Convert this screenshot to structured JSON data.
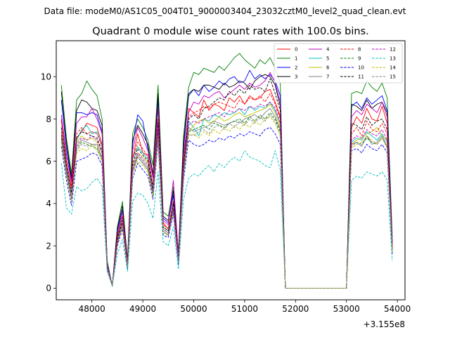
{
  "figure": {
    "suptitle": "Data file: modeM0/AS1C05_004T01_9000003404_23032cztM0_level2_quad_clean.evt",
    "title": "Quadrant 0 module wise count rates with 100.0s bins."
  },
  "chart_data": {
    "type": "line",
    "title": "Quadrant 0 module wise count rates with 100.0s bins.",
    "xlabel": "",
    "ylabel": "",
    "x_offset_label": "+3.155e8",
    "xlim": [
      47300,
      54150
    ],
    "ylim": [
      -0.55,
      11.7
    ],
    "xticks": [
      48000,
      49000,
      50000,
      51000,
      52000,
      53000,
      54000
    ],
    "xtick_labels": [
      "48000",
      "49000",
      "50000",
      "51000",
      "52000",
      "53000",
      "54000"
    ],
    "yticks": [
      0,
      2,
      4,
      6,
      8,
      10
    ],
    "ytick_labels": [
      "0",
      "2",
      "4",
      "6",
      "8",
      "10"
    ],
    "grid": false,
    "legend_position": "top-right",
    "x": [
      47400,
      47500,
      47600,
      47700,
      47800,
      47900,
      48000,
      48100,
      48200,
      48300,
      48400,
      48500,
      48600,
      48700,
      48800,
      48900,
      49000,
      49100,
      49200,
      49300,
      49400,
      49500,
      49600,
      49700,
      49800,
      49900,
      50000,
      50100,
      50200,
      50300,
      50400,
      50500,
      50600,
      50700,
      50800,
      50900,
      51000,
      51100,
      51200,
      51300,
      51400,
      51500,
      51600,
      51700,
      51800,
      51900,
      52000,
      52100,
      52200,
      52300,
      52400,
      52500,
      52600,
      52700,
      52800,
      52900,
      53000,
      53100,
      53200,
      53300,
      53400,
      53500,
      53600,
      53700,
      53800,
      53900
    ],
    "series": [
      {
        "name": "0",
        "color": "#ff0000",
        "dash": "solid",
        "values": [
          8.0,
          6.0,
          4.8,
          7.1,
          7.4,
          7.8,
          7.7,
          7.6,
          6.8,
          1.1,
          0.1,
          2.4,
          3.4,
          1.1,
          6.1,
          7.3,
          6.4,
          6.3,
          4.8,
          8.0,
          3.1,
          2.8,
          4.1,
          1.4,
          5.9,
          8.5,
          8.3,
          8.1,
          8.9,
          8.4,
          8.7,
          8.6,
          8.4,
          9.0,
          8.8,
          9.1,
          8.7,
          9.1,
          8.9,
          9.0,
          9.3,
          9.4,
          8.8,
          8.1,
          0.0,
          0.0,
          0.0,
          0.0,
          0.0,
          0.0,
          0.0,
          0.0,
          0.0,
          0.0,
          0.0,
          0.0,
          0.0,
          7.6,
          8.1,
          7.8,
          8.5,
          8.0,
          7.9,
          8.6,
          7.8,
          2.0
        ]
      },
      {
        "name": "1",
        "color": "#008000",
        "dash": "solid",
        "values": [
          9.6,
          7.1,
          5.4,
          8.9,
          9.2,
          9.8,
          9.4,
          9.1,
          8.0,
          1.3,
          0.1,
          2.9,
          4.1,
          1.3,
          7.3,
          8.0,
          7.6,
          7.0,
          5.8,
          9.6,
          3.6,
          3.4,
          4.8,
          1.7,
          7.2,
          9.5,
          10.2,
          10.1,
          10.4,
          10.3,
          10.2,
          10.5,
          10.3,
          10.6,
          10.9,
          11.1,
          10.8,
          10.6,
          10.4,
          10.8,
          10.6,
          10.9,
          10.4,
          9.7,
          0.0,
          0.0,
          0.0,
          0.0,
          0.0,
          0.0,
          0.0,
          0.0,
          0.0,
          0.0,
          0.0,
          0.0,
          0.0,
          9.2,
          9.3,
          9.2,
          9.8,
          9.5,
          9.3,
          9.7,
          9.0,
          2.4
        ]
      },
      {
        "name": "2",
        "color": "#0000ff",
        "dash": "solid",
        "values": [
          8.9,
          6.6,
          5.1,
          8.3,
          8.3,
          8.2,
          8.3,
          8.2,
          7.4,
          1.2,
          0.1,
          2.7,
          3.7,
          1.2,
          6.8,
          8.2,
          7.9,
          6.6,
          5.2,
          8.9,
          3.3,
          3.1,
          4.4,
          1.5,
          6.6,
          9.1,
          9.4,
          9.1,
          9.6,
          9.3,
          9.5,
          9.8,
          9.6,
          9.9,
          10.0,
          9.7,
          9.8,
          10.3,
          9.9,
          10.1,
          9.9,
          10.1,
          9.8,
          9.1,
          0.0,
          0.0,
          0.0,
          0.0,
          0.0,
          0.0,
          0.0,
          0.0,
          0.0,
          0.0,
          0.0,
          0.0,
          0.0,
          8.6,
          8.8,
          8.5,
          9.0,
          8.7,
          8.9,
          9.1,
          8.4,
          2.2
        ]
      },
      {
        "name": "3",
        "color": "#000000",
        "dash": "solid",
        "values": [
          9.3,
          6.9,
          5.2,
          8.4,
          8.9,
          8.8,
          8.5,
          8.4,
          7.7,
          1.2,
          0.1,
          2.8,
          3.9,
          1.3,
          7.0,
          7.7,
          7.3,
          6.8,
          5.4,
          9.2,
          3.4,
          3.2,
          4.6,
          1.6,
          6.9,
          9.2,
          9.4,
          9.3,
          9.6,
          9.6,
          9.5,
          9.4,
          9.7,
          9.5,
          9.6,
          9.8,
          9.7,
          9.4,
          9.8,
          10.0,
          10.1,
          10.0,
          9.6,
          8.6,
          0.0,
          0.0,
          0.0,
          0.0,
          0.0,
          0.0,
          0.0,
          0.0,
          0.0,
          0.0,
          0.0,
          0.0,
          0.0,
          8.7,
          8.6,
          8.4,
          8.9,
          8.5,
          8.7,
          8.8,
          8.3,
          2.1
        ]
      },
      {
        "name": "4",
        "color": "#bf00bf",
        "dash": "solid",
        "values": [
          8.2,
          6.3,
          5.0,
          7.8,
          8.1,
          8.1,
          8.5,
          8.0,
          7.3,
          1.2,
          0.1,
          2.5,
          3.6,
          1.2,
          6.5,
          7.6,
          7.1,
          6.5,
          5.2,
          8.5,
          3.2,
          3.0,
          5.1,
          1.5,
          6.3,
          8.3,
          8.8,
          8.7,
          9.1,
          9.0,
          9.2,
          9.3,
          9.0,
          9.2,
          9.4,
          9.6,
          9.4,
          9.7,
          9.5,
          9.6,
          9.8,
          10.2,
          9.7,
          8.8,
          0.0,
          0.0,
          0.0,
          0.0,
          0.0,
          0.0,
          0.0,
          0.0,
          0.0,
          0.0,
          0.0,
          0.0,
          0.0,
          8.1,
          8.4,
          8.2,
          8.7,
          8.5,
          8.3,
          8.8,
          8.1,
          2.1
        ]
      },
      {
        "name": "5",
        "color": "#00bfbf",
        "dash": "solid",
        "values": [
          7.5,
          5.8,
          4.5,
          7.0,
          7.5,
          7.7,
          7.3,
          7.4,
          6.7,
          1.1,
          0.1,
          2.3,
          3.3,
          1.1,
          6.1,
          6.7,
          6.4,
          6.1,
          4.8,
          7.9,
          2.9,
          2.7,
          4.0,
          1.3,
          5.8,
          7.9,
          7.6,
          7.2,
          8.0,
          7.9,
          8.2,
          8.1,
          8.3,
          8.2,
          8.3,
          8.5,
          8.2,
          8.6,
          8.4,
          8.6,
          8.5,
          8.8,
          8.4,
          7.8,
          0.0,
          0.0,
          0.0,
          0.0,
          0.0,
          0.0,
          0.0,
          0.0,
          0.0,
          0.0,
          0.0,
          0.0,
          0.0,
          6.9,
          7.1,
          7.0,
          7.4,
          7.2,
          7.0,
          7.3,
          6.9,
          1.8
        ]
      },
      {
        "name": "6",
        "color": "#bfbf00",
        "dash": "solid",
        "values": [
          7.4,
          5.6,
          4.3,
          6.9,
          7.2,
          7.0,
          7.1,
          6.9,
          6.4,
          1.0,
          0.1,
          2.2,
          3.1,
          1.0,
          5.8,
          6.4,
          6.2,
          5.9,
          4.6,
          7.6,
          2.8,
          2.6,
          3.8,
          1.3,
          5.6,
          7.4,
          7.7,
          7.9,
          8.0,
          7.8,
          7.9,
          8.1,
          7.9,
          8.0,
          8.2,
          8.3,
          8.1,
          8.2,
          8.3,
          8.4,
          8.5,
          8.7,
          8.3,
          7.6,
          0.0,
          0.0,
          0.0,
          0.0,
          0.0,
          0.0,
          0.0,
          0.0,
          0.0,
          0.0,
          0.0,
          0.0,
          0.0,
          6.8,
          7.0,
          7.1,
          7.3,
          7.4,
          7.6,
          7.2,
          7.0,
          1.8
        ]
      },
      {
        "name": "7",
        "color": "#808080",
        "dash": "solid",
        "values": [
          7.2,
          5.5,
          4.2,
          6.7,
          7.0,
          6.9,
          6.8,
          6.8,
          6.2,
          1.0,
          0.1,
          2.1,
          3.0,
          1.0,
          5.6,
          6.3,
          6.0,
          5.7,
          4.5,
          7.4,
          2.7,
          2.5,
          3.7,
          1.2,
          5.4,
          7.6,
          7.4,
          7.5,
          7.6,
          7.7,
          7.9,
          7.8,
          7.7,
          7.8,
          7.9,
          7.8,
          8.0,
          8.1,
          8.2,
          8.0,
          8.3,
          8.5,
          8.1,
          7.5,
          0.0,
          0.0,
          0.0,
          0.0,
          0.0,
          0.0,
          0.0,
          0.0,
          0.0,
          0.0,
          0.0,
          0.0,
          0.0,
          6.8,
          6.9,
          6.7,
          7.2,
          6.8,
          6.9,
          7.2,
          6.7,
          1.7
        ]
      },
      {
        "name": "8",
        "color": "#ff0000",
        "dash": "dashed",
        "values": [
          7.9,
          6.0,
          4.7,
          7.3,
          7.6,
          7.3,
          7.4,
          7.3,
          6.7,
          1.1,
          0.1,
          2.4,
          3.4,
          1.1,
          6.1,
          6.9,
          6.6,
          6.2,
          4.9,
          8.0,
          3.0,
          2.8,
          4.1,
          1.4,
          5.9,
          8.1,
          8.3,
          8.4,
          8.6,
          8.5,
          8.7,
          8.8,
          8.7,
          8.6,
          8.5,
          8.9,
          8.7,
          9.0,
          8.9,
          9.1,
          8.8,
          9.2,
          8.7,
          8.0,
          0.0,
          0.0,
          0.0,
          0.0,
          0.0,
          0.0,
          0.0,
          0.0,
          0.0,
          0.0,
          0.0,
          0.0,
          0.0,
          7.3,
          7.6,
          7.2,
          7.9,
          7.5,
          7.4,
          7.8,
          7.3,
          1.9
        ]
      },
      {
        "name": "9",
        "color": "#008000",
        "dash": "dashed",
        "values": [
          7.1,
          5.4,
          4.2,
          6.6,
          6.9,
          6.8,
          6.7,
          6.6,
          6.1,
          1.0,
          0.1,
          2.1,
          3.0,
          1.0,
          5.5,
          6.2,
          5.9,
          5.6,
          4.4,
          7.3,
          2.7,
          2.5,
          3.7,
          1.2,
          5.4,
          7.4,
          7.5,
          7.6,
          7.7,
          7.5,
          7.8,
          7.7,
          7.6,
          7.8,
          7.9,
          8.0,
          7.8,
          8.1,
          7.9,
          8.2,
          8.0,
          8.3,
          8.0,
          7.4,
          0.0,
          0.0,
          0.0,
          0.0,
          0.0,
          0.0,
          0.0,
          0.0,
          0.0,
          0.0,
          0.0,
          0.0,
          0.0,
          6.7,
          6.9,
          6.8,
          7.1,
          6.9,
          6.8,
          7.1,
          6.7,
          1.7
        ]
      },
      {
        "name": "10",
        "color": "#0000ff",
        "dash": "dashed",
        "values": [
          6.7,
          5.1,
          3.9,
          6.0,
          6.1,
          6.2,
          6.4,
          6.3,
          5.8,
          0.9,
          0.1,
          2.0,
          2.8,
          0.9,
          5.2,
          5.9,
          5.6,
          5.3,
          4.2,
          6.9,
          2.5,
          2.4,
          3.5,
          1.1,
          5.1,
          7.0,
          6.8,
          6.7,
          6.8,
          7.0,
          6.9,
          7.1,
          7.0,
          7.2,
          7.1,
          7.3,
          7.2,
          7.4,
          7.3,
          7.2,
          7.5,
          7.6,
          7.3,
          6.8,
          0.0,
          0.0,
          0.0,
          0.0,
          0.0,
          0.0,
          0.0,
          0.0,
          0.0,
          0.0,
          0.0,
          0.0,
          0.0,
          6.5,
          6.6,
          6.4,
          6.8,
          6.6,
          6.5,
          6.8,
          6.4,
          1.6
        ]
      },
      {
        "name": "11",
        "color": "#000000",
        "dash": "dashed",
        "values": [
          7.6,
          5.8,
          4.5,
          7.1,
          7.4,
          7.3,
          7.2,
          7.1,
          6.5,
          1.1,
          0.1,
          2.3,
          3.2,
          1.1,
          5.9,
          6.6,
          6.3,
          6.0,
          4.7,
          7.8,
          2.9,
          2.7,
          4.0,
          1.3,
          5.8,
          8.0,
          8.2,
          8.0,
          8.5,
          8.6,
          8.8,
          9.0,
          8.9,
          9.3,
          9.1,
          9.4,
          9.2,
          9.6,
          9.4,
          9.5,
          9.3,
          9.9,
          9.2,
          8.4,
          0.0,
          0.0,
          0.0,
          0.0,
          0.0,
          0.0,
          0.0,
          0.0,
          0.0,
          0.0,
          0.0,
          0.0,
          0.0,
          7.8,
          7.7,
          7.5,
          8.1,
          7.7,
          7.9,
          8.0,
          7.5,
          1.9
        ]
      },
      {
        "name": "12",
        "color": "#bf00bf",
        "dash": "dashed",
        "values": [
          7.3,
          5.6,
          4.3,
          6.8,
          7.1,
          7.0,
          7.2,
          7.0,
          6.4,
          1.0,
          0.1,
          2.2,
          3.1,
          1.0,
          5.7,
          6.4,
          6.1,
          5.8,
          4.6,
          7.6,
          2.8,
          2.6,
          3.8,
          1.3,
          5.6,
          7.7,
          7.9,
          7.8,
          8.0,
          8.1,
          8.2,
          8.3,
          8.1,
          8.4,
          8.3,
          8.5,
          8.4,
          8.6,
          8.5,
          8.7,
          8.6,
          8.8,
          8.5,
          7.8,
          0.0,
          0.0,
          0.0,
          0.0,
          0.0,
          0.0,
          0.0,
          0.0,
          0.0,
          0.0,
          0.0,
          0.0,
          0.0,
          7.0,
          7.2,
          7.1,
          7.5,
          7.3,
          7.2,
          7.5,
          7.0,
          1.8
        ]
      },
      {
        "name": "13",
        "color": "#00bfbf",
        "dash": "dashed",
        "values": [
          5.9,
          3.8,
          3.5,
          4.8,
          4.6,
          4.7,
          5.0,
          5.2,
          4.8,
          0.8,
          0.1,
          1.6,
          2.3,
          0.8,
          4.1,
          4.5,
          4.4,
          4.0,
          3.3,
          5.5,
          2.2,
          2.0,
          2.9,
          0.9,
          4.2,
          5.2,
          5.4,
          5.3,
          5.6,
          5.8,
          5.5,
          5.9,
          5.7,
          6.0,
          6.2,
          6.0,
          6.5,
          6.2,
          6.1,
          6.0,
          5.8,
          5.7,
          6.5,
          5.6,
          0.0,
          0.0,
          0.0,
          0.0,
          0.0,
          0.0,
          0.0,
          0.0,
          0.0,
          0.0,
          0.0,
          0.0,
          0.0,
          5.1,
          5.3,
          5.2,
          5.5,
          5.4,
          5.3,
          5.5,
          5.1,
          1.3
        ]
      },
      {
        "name": "14",
        "color": "#bfbf00",
        "dash": "dashed",
        "values": [
          6.9,
          5.3,
          4.1,
          6.4,
          6.6,
          6.5,
          6.8,
          6.5,
          6.0,
          1.0,
          0.1,
          2.1,
          2.9,
          1.0,
          5.4,
          6.0,
          5.8,
          5.5,
          4.3,
          7.1,
          2.6,
          2.5,
          3.6,
          1.2,
          5.3,
          7.2,
          7.3,
          7.1,
          7.4,
          7.2,
          7.5,
          7.3,
          7.6,
          7.4,
          7.7,
          7.5,
          7.8,
          7.6,
          7.9,
          7.7,
          8.0,
          8.1,
          7.8,
          7.2,
          0.0,
          0.0,
          0.0,
          0.0,
          0.0,
          0.0,
          0.0,
          0.0,
          0.0,
          0.0,
          0.0,
          0.0,
          0.0,
          6.6,
          6.8,
          6.9,
          7.2,
          7.0,
          6.8,
          7.1,
          6.6,
          1.7
        ]
      },
      {
        "name": "15",
        "color": "#808080",
        "dash": "dashed",
        "values": [
          7.0,
          5.4,
          4.2,
          6.5,
          6.8,
          6.7,
          6.8,
          6.7,
          6.1,
          1.0,
          0.1,
          2.1,
          3.0,
          1.0,
          5.5,
          6.2,
          5.9,
          5.6,
          4.4,
          7.2,
          2.7,
          2.5,
          3.6,
          1.2,
          5.4,
          7.3,
          7.2,
          7.4,
          7.5,
          7.3,
          7.6,
          7.7,
          7.5,
          7.8,
          7.6,
          7.9,
          7.7,
          8.0,
          7.8,
          8.1,
          7.9,
          8.2,
          7.9,
          7.3,
          0.0,
          0.0,
          0.0,
          0.0,
          0.0,
          0.0,
          0.0,
          0.0,
          0.0,
          0.0,
          0.0,
          0.0,
          0.0,
          6.7,
          6.9,
          6.8,
          7.2,
          6.9,
          6.8,
          7.1,
          6.7,
          1.7
        ]
      }
    ]
  }
}
